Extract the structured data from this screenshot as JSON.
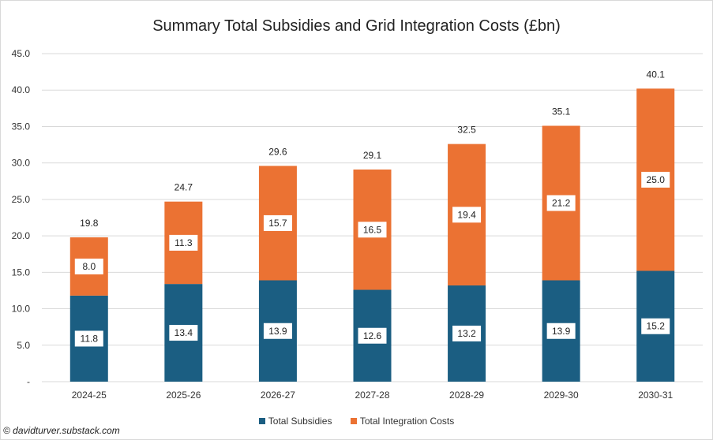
{
  "chart_data": {
    "type": "bar",
    "stacked": true,
    "title": "Summary Total Subsidies and Grid Integration Costs (£bn)",
    "categories": [
      "2024-25",
      "2025-26",
      "2026-27",
      "2027-28",
      "2028-29",
      "2029-30",
      "2030-31"
    ],
    "series": [
      {
        "name": "Total Subsidies",
        "color": "#1b5e82",
        "values": [
          11.8,
          13.4,
          13.9,
          12.6,
          13.2,
          13.9,
          15.2
        ]
      },
      {
        "name": "Total Integration Costs",
        "color": "#eb7233",
        "values": [
          8.0,
          11.3,
          15.7,
          16.5,
          19.4,
          21.2,
          25.0
        ]
      }
    ],
    "totals": [
      "19.8",
      "24.7",
      "29.6",
      "29.1",
      "32.5",
      "35.1",
      "40.1"
    ],
    "subsidy_labels": [
      "11.8",
      "13.4",
      "13.9",
      "12.6",
      "13.2",
      "13.9",
      "15.2"
    ],
    "integration_labels": [
      "8.0",
      "11.3",
      "15.7",
      "16.5",
      "19.4",
      "21.2",
      "25.0"
    ],
    "y_ticks": [
      "-",
      "5.0",
      "10.0",
      "15.0",
      "20.0",
      "25.0",
      "30.0",
      "35.0",
      "40.0",
      "45.0"
    ],
    "ylim": [
      0,
      45
    ],
    "grid": true,
    "legend_position": "bottom"
  },
  "credit": "© davidturver.substack.com"
}
